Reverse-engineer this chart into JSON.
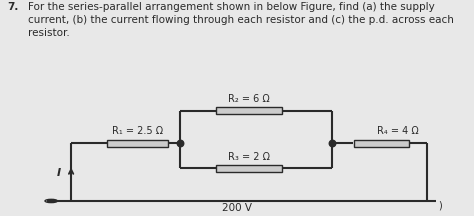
{
  "title_number": "7.",
  "title_text": "For the series-parallel arrangement shown in below Figure, find (a) the supply\ncurrent, (b) the current flowing through each resistor and (c) the p.d. across each\nresistor.",
  "background_color": "#e8e8e8",
  "circuit_color": "#2a2a2a",
  "resistor_fill": "#cccccc",
  "voltage_label": "200 V",
  "current_label": "I",
  "R1_label": "R₁ = 2.5 Ω",
  "R2_label": "R₂ = 6 Ω",
  "R3_label": "R₃ = 2 Ω",
  "R4_label": "R₄ = 4 Ω",
  "font_size_title": 7.5,
  "font_size_circuit": 7,
  "font_size_circuit_label": 7.5
}
